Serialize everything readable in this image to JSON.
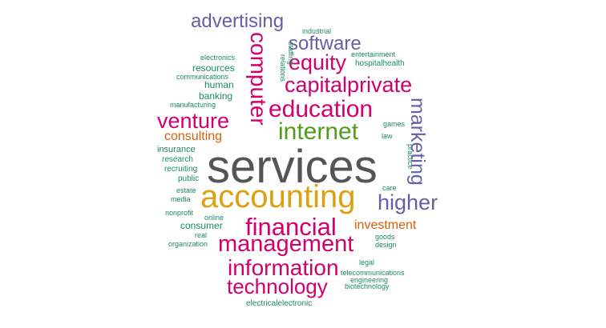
{
  "colors": {
    "gray": "#555555",
    "gold": "#dba110",
    "magenta": "#d2006e",
    "purple": "#675ea8",
    "green": "#1a8a6a",
    "lime": "#4f9d1a",
    "orange": "#d35f0a"
  },
  "words": [
    {
      "text": "services",
      "color": "gray"
    },
    {
      "text": "accounting",
      "color": "gold"
    },
    {
      "text": "financial",
      "color": "magenta"
    },
    {
      "text": "management",
      "color": "magenta"
    },
    {
      "text": "information",
      "color": "magenta"
    },
    {
      "text": "technology",
      "color": "magenta"
    },
    {
      "text": "internet",
      "color": "lime"
    },
    {
      "text": "education",
      "color": "magenta"
    },
    {
      "text": "capitalprivate",
      "color": "magenta"
    },
    {
      "text": "equity",
      "color": "magenta"
    },
    {
      "text": "software",
      "color": "purple"
    },
    {
      "text": "advertising",
      "color": "purple"
    },
    {
      "text": "venture",
      "color": "magenta"
    },
    {
      "text": "computer",
      "color": "magenta"
    },
    {
      "text": "marketing",
      "color": "purple"
    },
    {
      "text": "higher",
      "color": "purple"
    },
    {
      "text": "investment",
      "color": "orange"
    },
    {
      "text": "consulting",
      "color": "orange"
    },
    {
      "text": "consumer",
      "color": "green"
    },
    {
      "text": "resources",
      "color": "green"
    },
    {
      "text": "human",
      "color": "green"
    },
    {
      "text": "banking",
      "color": "green"
    },
    {
      "text": "insurance",
      "color": "green"
    },
    {
      "text": "research",
      "color": "green"
    },
    {
      "text": "recruiting",
      "color": "green"
    },
    {
      "text": "public",
      "color": "green"
    },
    {
      "text": "estate",
      "color": "green"
    },
    {
      "text": "media",
      "color": "green"
    },
    {
      "text": "nonprofit",
      "color": "green"
    },
    {
      "text": "online",
      "color": "green"
    },
    {
      "text": "real",
      "color": "green"
    },
    {
      "text": "organization",
      "color": "green"
    },
    {
      "text": "electronics",
      "color": "green"
    },
    {
      "text": "communications",
      "color": "green"
    },
    {
      "text": "manufacturing",
      "color": "green"
    },
    {
      "text": "industrial",
      "color": "green"
    },
    {
      "text": "entertainment",
      "color": "green"
    },
    {
      "text": "hospitalhealth",
      "color": "green"
    },
    {
      "text": "relations",
      "color": "green"
    },
    {
      "text": "staffing",
      "color": "green"
    },
    {
      "text": "games",
      "color": "green"
    },
    {
      "text": "law",
      "color": "green"
    },
    {
      "text": "practice",
      "color": "green"
    },
    {
      "text": "care",
      "color": "green"
    },
    {
      "text": "goods",
      "color": "green"
    },
    {
      "text": "design",
      "color": "green"
    },
    {
      "text": "legal",
      "color": "green"
    },
    {
      "text": "telecommunications",
      "color": "green"
    },
    {
      "text": "engineering",
      "color": "green"
    },
    {
      "text": "biotechnology",
      "color": "green"
    },
    {
      "text": "electricalelectronic",
      "color": "green"
    }
  ]
}
